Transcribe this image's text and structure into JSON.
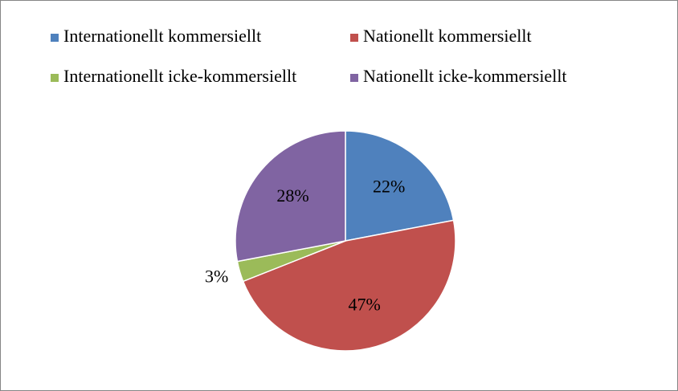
{
  "chart_data": {
    "type": "pie",
    "categories": [
      "Internationellt kommersiellt",
      "Nationellt kommersiellt",
      "Internationellt icke-kommersiellt",
      "Nationellt icke-kommersiellt"
    ],
    "values": [
      22,
      47,
      3,
      28
    ],
    "value_labels": [
      "22%",
      "47%",
      "3%",
      "28%"
    ],
    "colors": [
      "#4f81bd",
      "#c0504d",
      "#9bbb59",
      "#8064a2"
    ],
    "legend": "top"
  }
}
